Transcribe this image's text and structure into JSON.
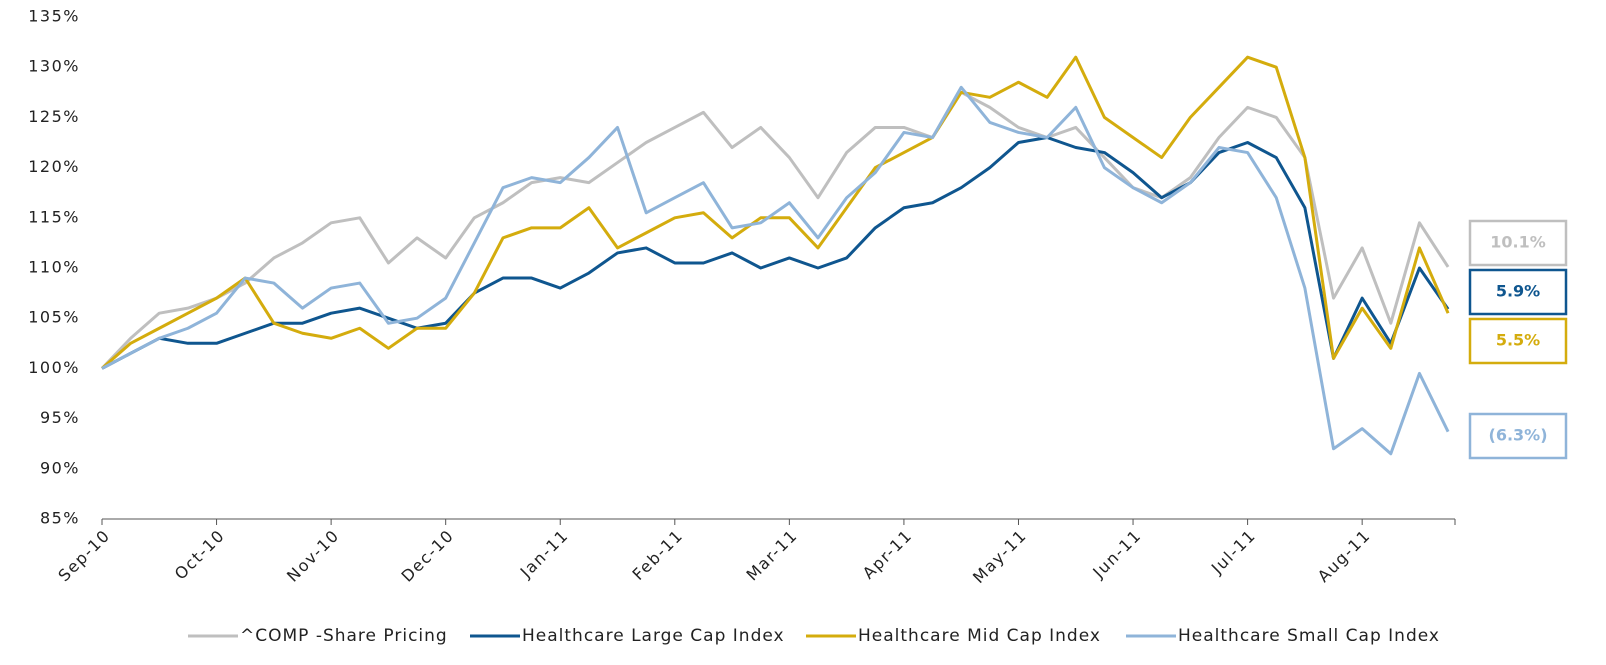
{
  "chart_data": {
    "type": "line",
    "categories": [
      "Sep-10",
      null,
      null,
      null,
      "Oct-10",
      null,
      null,
      null,
      "Nov-10",
      null,
      null,
      null,
      "Dec-10",
      null,
      null,
      null,
      "Jan-11",
      null,
      null,
      null,
      "Feb-11",
      null,
      null,
      null,
      "Mar-11",
      null,
      null,
      null,
      "Apr-11",
      null,
      null,
      null,
      "May-11",
      null,
      null,
      null,
      "Jun-11",
      null,
      null,
      null,
      "Jul-11",
      null,
      null,
      null,
      "Aug-11",
      null,
      null,
      null
    ],
    "ylim": [
      85,
      135
    ],
    "yticks": [
      {
        "value": 85,
        "label": "85%"
      },
      {
        "value": 90,
        "label": "90%"
      },
      {
        "value": 95,
        "label": "95%"
      },
      {
        "value": 100,
        "label": "100%"
      },
      {
        "value": 105,
        "label": "105%"
      },
      {
        "value": 110,
        "label": "110%"
      },
      {
        "value": 115,
        "label": "115%"
      },
      {
        "value": 120,
        "label": "120%"
      },
      {
        "value": 125,
        "label": "125%"
      },
      {
        "value": 130,
        "label": "130%"
      },
      {
        "value": 135,
        "label": "135%"
      }
    ],
    "grid": false,
    "series": [
      {
        "name": "^COMP -Share Pricing",
        "color": "#bfbfbf",
        "end_label": "10.1%",
        "values": [
          100,
          103,
          105.5,
          106,
          107,
          108.5,
          111,
          112.5,
          114.5,
          115,
          110.5,
          113,
          111,
          115,
          116.5,
          118.5,
          119,
          118.5,
          120.5,
          122.5,
          124,
          125.5,
          122,
          124,
          121,
          117,
          121.5,
          124,
          124,
          123,
          127.5,
          126,
          124,
          123,
          124,
          121,
          118,
          117,
          119,
          123,
          126,
          125,
          121,
          107,
          112,
          104.5,
          114.5,
          110.1
        ]
      },
      {
        "name": "Healthcare Large Cap Index",
        "color": "#0f568f",
        "end_label": "5.9%",
        "values": [
          100,
          101.5,
          103,
          102.5,
          102.5,
          103.5,
          104.5,
          104.5,
          105.5,
          106,
          105,
          104,
          104.5,
          107.5,
          109,
          109,
          108,
          109.5,
          111.5,
          112,
          110.5,
          110.5,
          111.5,
          110,
          111,
          110,
          111,
          114,
          116,
          116.5,
          118,
          120,
          122.5,
          123,
          122,
          121.5,
          119.5,
          117,
          118.5,
          121.5,
          122.5,
          121,
          116,
          101,
          107,
          102.5,
          110,
          105.9
        ]
      },
      {
        "name": "Healthcare Mid Cap Index",
        "color": "#d4ac0d",
        "end_label": "5.5%",
        "values": [
          100,
          102.5,
          104,
          105.5,
          107,
          109,
          104.5,
          103.5,
          103,
          104,
          102,
          104,
          104,
          107.5,
          113,
          114,
          114,
          116,
          112,
          113.5,
          115,
          115.5,
          113,
          115,
          115,
          112,
          116,
          120,
          121.5,
          123,
          127.5,
          127,
          128.5,
          127,
          131,
          125,
          123,
          121,
          125,
          128,
          131,
          130,
          121,
          101,
          106,
          102,
          112,
          105.5
        ]
      },
      {
        "name": "Healthcare Small Cap Index",
        "color": "#8fb4d9",
        "end_label": "(6.3%)",
        "values": [
          100,
          101.5,
          103,
          104,
          105.5,
          109,
          108.5,
          106,
          108,
          108.5,
          104.5,
          105,
          107,
          112.5,
          118,
          119,
          118.5,
          121,
          124,
          115.5,
          117,
          118.5,
          114,
          114.5,
          116.5,
          113,
          117,
          119.5,
          123.5,
          123,
          128,
          124.5,
          123.5,
          123,
          126,
          120,
          118,
          116.5,
          118.5,
          122,
          121.5,
          117,
          108,
          92,
          94,
          91.5,
          99.5,
          93.7
        ]
      }
    ]
  }
}
